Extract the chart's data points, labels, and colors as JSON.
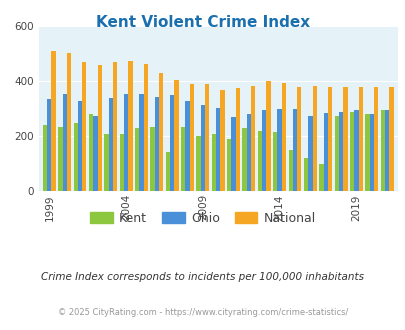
{
  "title": "Kent Violent Crime Index",
  "title_color": "#1a6faf",
  "subtitle": "Crime Index corresponds to incidents per 100,000 inhabitants",
  "copyright": "© 2025 CityRating.com - https://www.cityrating.com/crime-statistics/",
  "years": [
    1999,
    2000,
    2001,
    2002,
    2003,
    2004,
    2005,
    2006,
    2007,
    2008,
    2009,
    2010,
    2011,
    2012,
    2013,
    2014,
    2015,
    2016,
    2017,
    2018,
    2019,
    2020,
    2021
  ],
  "xtick_labels": [
    "1999",
    "2004",
    "2009",
    "2014",
    "2019"
  ],
  "xtick_positions": [
    1999,
    2004,
    2009,
    2014,
    2019
  ],
  "kent": [
    240,
    235,
    250,
    280,
    210,
    210,
    230,
    235,
    145,
    235,
    200,
    210,
    190,
    230,
    220,
    215,
    150,
    120,
    100,
    275,
    290,
    280,
    295
  ],
  "ohio": [
    335,
    355,
    330,
    275,
    340,
    355,
    355,
    345,
    350,
    330,
    315,
    305,
    270,
    280,
    295,
    300,
    300,
    275,
    285,
    290,
    295,
    280,
    295
  ],
  "national": [
    510,
    505,
    470,
    460,
    470,
    475,
    465,
    430,
    405,
    390,
    390,
    370,
    375,
    385,
    400,
    395,
    380,
    385,
    380,
    380,
    380,
    380,
    380
  ],
  "kent_color": "#8dc63f",
  "ohio_color": "#4a90d9",
  "national_color": "#f5a623",
  "bg_color": "#e5f2f7",
  "ylim": [
    0,
    600
  ],
  "yticks": [
    0,
    200,
    400,
    600
  ],
  "bar_width": 0.28,
  "legend_labels": [
    "Kent",
    "Ohio",
    "National"
  ]
}
